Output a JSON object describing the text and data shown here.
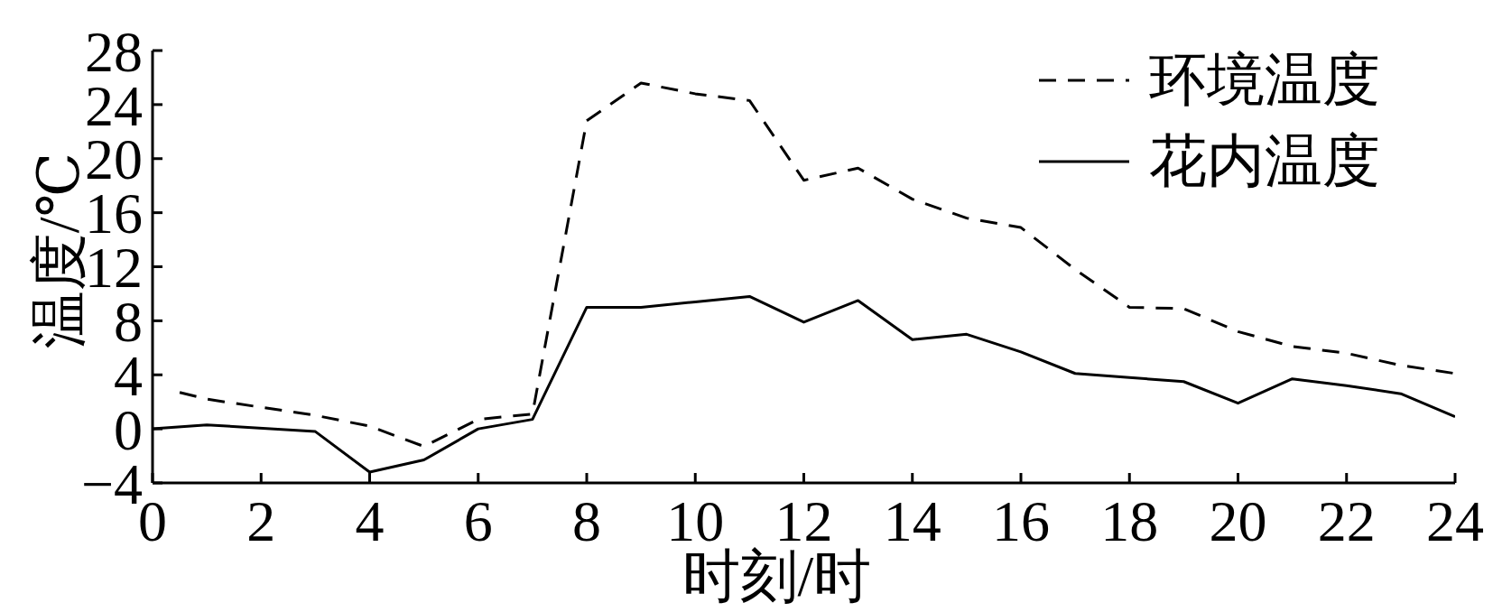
{
  "chart_data": {
    "type": "line",
    "xlabel": "时刻/时",
    "ylabel": "温度/℃",
    "xlim": [
      0,
      24
    ],
    "xticks": [
      0,
      2,
      4,
      6,
      8,
      10,
      12,
      14,
      16,
      18,
      20,
      22,
      24
    ],
    "ylim": [
      -4,
      28
    ],
    "yticks": [
      {
        "value": -4,
        "label": "−4"
      },
      0,
      4,
      8,
      12,
      16,
      20,
      24,
      28
    ],
    "legend": "top right",
    "series": [
      {
        "name": "环境温度",
        "color": "#000000",
        "line_style": "dashed",
        "x": [
          0.5,
          1,
          2,
          3,
          4,
          5,
          6,
          7,
          8,
          9,
          10,
          11,
          12,
          13,
          14,
          15,
          16,
          17,
          18,
          19,
          20,
          21,
          22,
          23,
          24
        ],
        "values": [
          2.7,
          2.2,
          1.6,
          1.0,
          0.2,
          -1.3,
          0.7,
          1.1,
          22.8,
          25.6,
          24.8,
          24.3,
          18.4,
          19.3,
          17.0,
          15.6,
          14.9,
          11.8,
          9.0,
          8.9,
          7.2,
          6.1,
          5.6,
          4.7,
          4.1
        ]
      },
      {
        "name": "花内温度",
        "color": "#000000",
        "line_style": "solid",
        "x": [
          0,
          1,
          3,
          4,
          5,
          6,
          7,
          8,
          9,
          10,
          11,
          12,
          13,
          14,
          15,
          16,
          17,
          18,
          19,
          20,
          21,
          22,
          23,
          24
        ],
        "values": [
          0,
          0.3,
          -0.2,
          -3.2,
          -2.3,
          0,
          0.7,
          9,
          9,
          9.4,
          9.8,
          7.9,
          9.5,
          6.6,
          7.0,
          5.7,
          4.1,
          3.8,
          3.5,
          1.9,
          3.7,
          3.2,
          2.6,
          0.9
        ]
      }
    ]
  }
}
